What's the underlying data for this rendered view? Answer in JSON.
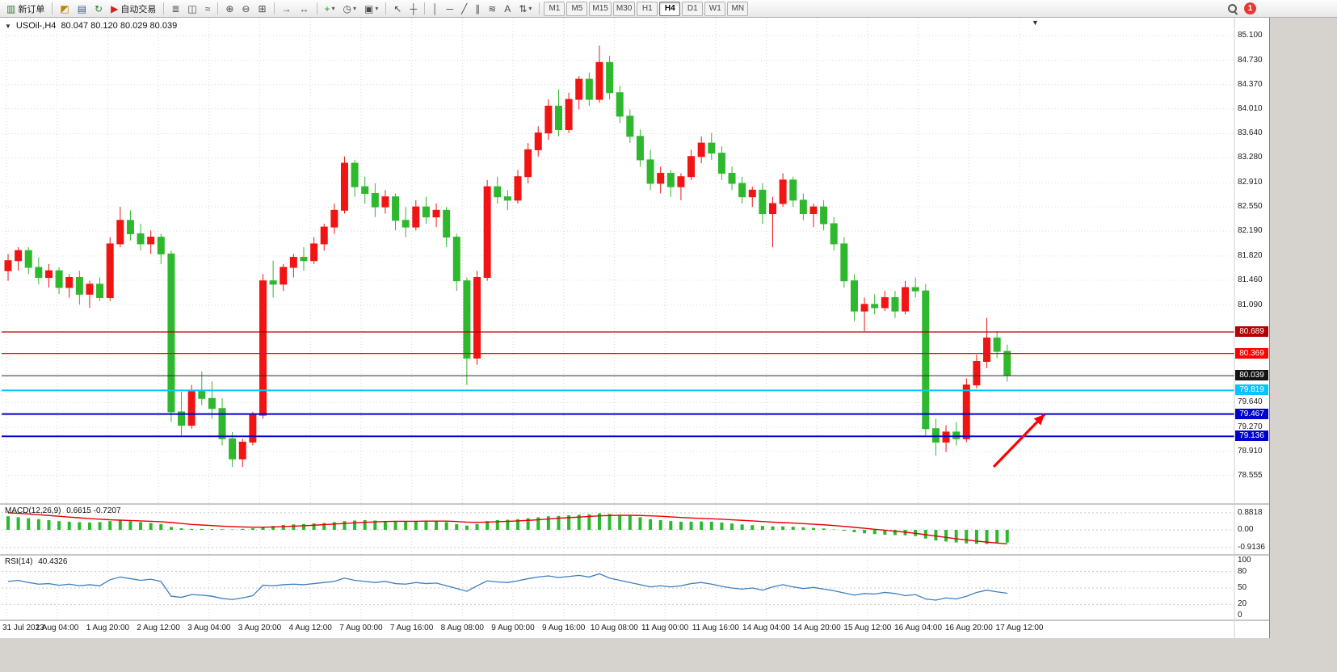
{
  "app": {
    "notification_count": "1"
  },
  "icons": {
    "chart_menu": "▼",
    "shift_marker": "▼",
    "dropdown_ca": "▾"
  },
  "legend": {
    "symbol_period": "USOil-,H4",
    "ohlc_text": "80.047 80.120 80.029 80.039"
  },
  "toolbar": {
    "groups": [
      [
        {
          "name": "new-order-button",
          "glyph": "▥",
          "glyph_color": "#2e7d32",
          "label": "新订单"
        }
      ],
      [
        {
          "name": "new-chart-button",
          "glyph": "◩",
          "glyph_color": "#b8860b"
        },
        {
          "name": "profiles-button",
          "glyph": "▤",
          "glyph_color": "#37598c"
        },
        {
          "name": "refresh-button",
          "glyph": "↻",
          "glyph_color": "#2e7d32"
        },
        {
          "name": "autotrading-button",
          "glyph": "▶",
          "glyph_color": "#cc2222",
          "label": "自动交易"
        }
      ],
      [
        {
          "name": "bar-chart-button",
          "glyph": "≣"
        },
        {
          "name": "candlestick-chart-button",
          "glyph": "◫"
        },
        {
          "name": "line-chart-button",
          "glyph": "≈"
        }
      ],
      [
        {
          "name": "zoom-in-button",
          "glyph": "⊕"
        },
        {
          "name": "zoom-out-button",
          "glyph": "⊖"
        },
        {
          "name": "tile-windows-button",
          "glyph": "⊞"
        }
      ],
      [
        {
          "name": "auto-scroll-button",
          "glyph": "→"
        },
        {
          "name": "chart-shift-button",
          "glyph": "↔"
        }
      ],
      [
        {
          "name": "indicators-button",
          "glyph": "+",
          "glyph_color": "#1da11d",
          "dropdown": true
        },
        {
          "name": "periods-button",
          "glyph": "◷",
          "dropdown": true
        },
        {
          "name": "templates-button",
          "glyph": "▣",
          "dropdown": true
        }
      ],
      [
        {
          "name": "cursor-button",
          "glyph": "↖"
        },
        {
          "name": "crosshair-button",
          "glyph": "┼"
        }
      ],
      [
        {
          "name": "vertical-line-button",
          "glyph": "│"
        },
        {
          "name": "horizontal-line-button",
          "glyph": "─"
        },
        {
          "name": "trendline-button",
          "glyph": "╱"
        },
        {
          "name": "channel-button",
          "glyph": "∥"
        },
        {
          "name": "fibonacci-button",
          "glyph": "≋"
        },
        {
          "name": "text-button",
          "glyph": "A"
        },
        {
          "name": "arrows-button",
          "glyph": "⇅",
          "dropdown": true
        }
      ]
    ],
    "timeframes": {
      "options": [
        "M1",
        "M5",
        "M15",
        "M30",
        "H1",
        "H4",
        "D1",
        "W1",
        "MN"
      ],
      "active": "H4"
    }
  },
  "chart_data": {
    "type": "candlestick",
    "symbol": "USOil-",
    "timeframe": "H4",
    "last_price": 80.039,
    "up_color": "#f01414",
    "down_color": "#2eb82e",
    "ylim": [
      78.4,
      85.36
    ],
    "y_tick_labels": [
      "85.100",
      "84.730",
      "84.370",
      "84.010",
      "83.640",
      "83.280",
      "82.910",
      "82.550",
      "82.190",
      "81.820",
      "81.460",
      "81.090",
      "79.640",
      "79.270",
      "78.910",
      "78.555"
    ],
    "x_tick_labels": [
      "31 Jul 2023",
      "1 Aug 04:00",
      "1 Aug 20:00",
      "2 Aug 12:00",
      "3 Aug 04:00",
      "3 Aug 20:00",
      "4 Aug 12:00",
      "7 Aug 00:00",
      "7 Aug 16:00",
      "8 Aug 08:00",
      "9 Aug 00:00",
      "9 Aug 16:00",
      "10 Aug 08:00",
      "11 Aug 00:00",
      "11 Aug 16:00",
      "14 Aug 04:00",
      "14 Aug 20:00",
      "15 Aug 12:00",
      "16 Aug 04:00",
      "16 Aug 20:00",
      "17 Aug 12:00"
    ],
    "price_levels": [
      {
        "price": "80.689",
        "color": "#b30000",
        "width": 1.2
      },
      {
        "price": "80.369",
        "color": "#ff0000",
        "width": 1.2
      },
      {
        "price": "80.039",
        "color": "#2b2b2b",
        "width": 1,
        "badge_bg": "#141414"
      },
      {
        "price": "79.819",
        "color": "#00c6ff",
        "width": 2
      },
      {
        "price": "79.467",
        "color": "#0000cd",
        "width": 2
      },
      {
        "price": "79.136",
        "color": "#0000cd",
        "width": 2
      }
    ],
    "ohlc": [
      [
        81.6,
        81.85,
        81.45,
        81.75
      ],
      [
        81.75,
        81.95,
        81.6,
        81.9
      ],
      [
        81.9,
        81.95,
        81.55,
        81.65
      ],
      [
        81.65,
        81.8,
        81.4,
        81.5
      ],
      [
        81.5,
        81.7,
        81.35,
        81.6
      ],
      [
        81.6,
        81.65,
        81.25,
        81.35
      ],
      [
        81.35,
        81.55,
        81.2,
        81.5
      ],
      [
        81.5,
        81.6,
        81.1,
        81.25
      ],
      [
        81.25,
        81.45,
        81.05,
        81.4
      ],
      [
        81.4,
        81.5,
        81.15,
        81.2
      ],
      [
        81.2,
        82.1,
        81.15,
        82.0
      ],
      [
        82.0,
        82.55,
        81.95,
        82.35
      ],
      [
        82.35,
        82.5,
        82.05,
        82.15
      ],
      [
        82.15,
        82.3,
        81.9,
        82.0
      ],
      [
        82.0,
        82.2,
        81.85,
        82.1
      ],
      [
        82.1,
        82.15,
        81.7,
        81.85
      ],
      [
        81.85,
        81.9,
        79.35,
        79.5
      ],
      [
        79.5,
        79.8,
        79.15,
        79.3
      ],
      [
        79.3,
        79.9,
        79.25,
        79.8
      ],
      [
        79.8,
        80.1,
        79.6,
        79.7
      ],
      [
        79.7,
        79.95,
        79.4,
        79.55
      ],
      [
        79.55,
        79.7,
        79.0,
        79.1
      ],
      [
        79.1,
        79.2,
        78.68,
        78.8
      ],
      [
        78.8,
        79.1,
        78.68,
        79.05
      ],
      [
        79.05,
        79.5,
        79.0,
        79.45
      ],
      [
        79.45,
        81.55,
        79.4,
        81.45
      ],
      [
        81.45,
        81.75,
        81.2,
        81.4
      ],
      [
        81.4,
        81.7,
        81.3,
        81.65
      ],
      [
        81.65,
        81.85,
        81.5,
        81.8
      ],
      [
        81.8,
        81.95,
        81.6,
        81.75
      ],
      [
        81.75,
        82.1,
        81.7,
        82.0
      ],
      [
        82.0,
        82.3,
        81.9,
        82.25
      ],
      [
        82.25,
        82.6,
        82.15,
        82.5
      ],
      [
        82.5,
        83.3,
        82.45,
        83.2
      ],
      [
        83.2,
        83.25,
        82.7,
        82.85
      ],
      [
        82.85,
        83.0,
        82.6,
        82.75
      ],
      [
        82.75,
        82.9,
        82.4,
        82.55
      ],
      [
        82.55,
        82.8,
        82.45,
        82.7
      ],
      [
        82.7,
        82.75,
        82.2,
        82.35
      ],
      [
        82.35,
        82.55,
        82.1,
        82.25
      ],
      [
        82.25,
        82.65,
        82.2,
        82.55
      ],
      [
        82.55,
        82.7,
        82.3,
        82.4
      ],
      [
        82.4,
        82.6,
        82.25,
        82.5
      ],
      [
        82.5,
        82.55,
        81.95,
        82.1
      ],
      [
        82.1,
        82.15,
        81.3,
        81.45
      ],
      [
        81.45,
        81.5,
        79.9,
        80.3
      ],
      [
        80.3,
        81.6,
        80.2,
        81.5
      ],
      [
        81.5,
        82.95,
        81.45,
        82.85
      ],
      [
        82.85,
        83.0,
        82.6,
        82.7
      ],
      [
        82.7,
        82.8,
        82.5,
        82.65
      ],
      [
        82.65,
        83.1,
        82.6,
        83.0
      ],
      [
        83.0,
        83.5,
        82.9,
        83.4
      ],
      [
        83.4,
        83.75,
        83.3,
        83.65
      ],
      [
        83.65,
        84.15,
        83.55,
        84.05
      ],
      [
        84.05,
        84.3,
        83.6,
        83.7
      ],
      [
        83.7,
        84.25,
        83.65,
        84.15
      ],
      [
        84.15,
        84.5,
        84.0,
        84.45
      ],
      [
        84.45,
        84.55,
        84.05,
        84.15
      ],
      [
        84.15,
        84.95,
        84.1,
        84.7
      ],
      [
        84.7,
        84.8,
        84.15,
        84.25
      ],
      [
        84.25,
        84.35,
        83.8,
        83.9
      ],
      [
        83.9,
        84.0,
        83.5,
        83.6
      ],
      [
        83.6,
        83.7,
        83.15,
        83.25
      ],
      [
        83.25,
        83.4,
        82.8,
        82.9
      ],
      [
        82.9,
        83.15,
        82.75,
        83.05
      ],
      [
        83.05,
        83.1,
        82.7,
        82.85
      ],
      [
        82.85,
        83.05,
        82.65,
        83.0
      ],
      [
        83.0,
        83.4,
        82.95,
        83.3
      ],
      [
        83.3,
        83.6,
        83.2,
        83.5
      ],
      [
        83.5,
        83.65,
        83.25,
        83.35
      ],
      [
        83.35,
        83.45,
        82.95,
        83.05
      ],
      [
        83.05,
        83.15,
        82.8,
        82.9
      ],
      [
        82.9,
        83.0,
        82.6,
        82.7
      ],
      [
        82.7,
        82.85,
        82.55,
        82.8
      ],
      [
        82.8,
        82.9,
        82.3,
        82.45
      ],
      [
        82.45,
        82.7,
        81.95,
        82.6
      ],
      [
        82.6,
        83.05,
        82.55,
        82.95
      ],
      [
        82.95,
        83.0,
        82.55,
        82.65
      ],
      [
        82.65,
        82.75,
        82.35,
        82.45
      ],
      [
        82.45,
        82.6,
        82.25,
        82.55
      ],
      [
        82.55,
        82.65,
        82.2,
        82.3
      ],
      [
        82.3,
        82.4,
        81.9,
        82.0
      ],
      [
        82.0,
        82.1,
        81.35,
        81.45
      ],
      [
        81.45,
        81.55,
        80.85,
        81.0
      ],
      [
        81.0,
        81.2,
        80.7,
        81.1
      ],
      [
        81.1,
        81.25,
        80.95,
        81.05
      ],
      [
        81.05,
        81.3,
        81.0,
        81.2
      ],
      [
        81.2,
        81.3,
        80.9,
        81.0
      ],
      [
        81.0,
        81.45,
        80.95,
        81.35
      ],
      [
        81.35,
        81.5,
        81.2,
        81.3
      ],
      [
        81.3,
        81.4,
        79.15,
        79.25
      ],
      [
        79.25,
        79.4,
        78.85,
        79.05
      ],
      [
        79.05,
        79.3,
        78.9,
        79.2
      ],
      [
        79.2,
        79.35,
        79.0,
        79.1
      ],
      [
        79.1,
        80.0,
        79.05,
        79.9
      ],
      [
        79.9,
        80.35,
        79.85,
        80.25
      ],
      [
        80.25,
        80.9,
        80.15,
        80.6
      ],
      [
        80.6,
        80.7,
        80.3,
        80.4
      ],
      [
        80.4,
        80.5,
        79.95,
        80.04
      ]
    ],
    "macd": {
      "title": "MACD(12,26,9)",
      "current_text": "0.6615 -0.7207",
      "axis_labels": [
        "0.8818",
        "0.00",
        "-0.9136"
      ],
      "histogram_color": "#2eb82e",
      "signal_color": "#e60000",
      "histogram": [
        0.7,
        0.65,
        0.6,
        0.55,
        0.5,
        0.45,
        0.42,
        0.4,
        0.38,
        0.4,
        0.45,
        0.48,
        0.45,
        0.4,
        0.35,
        0.3,
        0.15,
        0.08,
        0.05,
        0.05,
        0.04,
        0.03,
        0.02,
        0.05,
        0.08,
        0.15,
        0.2,
        0.25,
        0.28,
        0.3,
        0.33,
        0.36,
        0.4,
        0.45,
        0.48,
        0.5,
        0.48,
        0.46,
        0.44,
        0.42,
        0.44,
        0.45,
        0.46,
        0.4,
        0.3,
        0.22,
        0.3,
        0.45,
        0.5,
        0.52,
        0.55,
        0.6,
        0.65,
        0.7,
        0.72,
        0.75,
        0.78,
        0.8,
        0.85,
        0.82,
        0.78,
        0.72,
        0.65,
        0.55,
        0.5,
        0.45,
        0.42,
        0.42,
        0.43,
        0.42,
        0.38,
        0.33,
        0.28,
        0.24,
        0.2,
        0.18,
        0.18,
        0.16,
        0.13,
        0.1,
        0.07,
        0.02,
        -0.05,
        -0.12,
        -0.18,
        -0.22,
        -0.25,
        -0.27,
        -0.28,
        -0.32,
        -0.45,
        -0.55,
        -0.6,
        -0.65,
        -0.7,
        -0.72,
        -0.73,
        -0.7,
        -0.66
      ],
      "signal": [
        0.88,
        0.85,
        0.82,
        0.78,
        0.74,
        0.7,
        0.66,
        0.62,
        0.58,
        0.55,
        0.52,
        0.5,
        0.48,
        0.46,
        0.44,
        0.42,
        0.38,
        0.33,
        0.28,
        0.25,
        0.22,
        0.19,
        0.17,
        0.15,
        0.14,
        0.14,
        0.15,
        0.17,
        0.19,
        0.21,
        0.24,
        0.27,
        0.3,
        0.33,
        0.36,
        0.39,
        0.41,
        0.43,
        0.44,
        0.44,
        0.44,
        0.45,
        0.45,
        0.45,
        0.43,
        0.4,
        0.39,
        0.4,
        0.42,
        0.44,
        0.46,
        0.49,
        0.52,
        0.56,
        0.6,
        0.63,
        0.66,
        0.69,
        0.72,
        0.74,
        0.75,
        0.75,
        0.74,
        0.72,
        0.7,
        0.67,
        0.64,
        0.61,
        0.59,
        0.57,
        0.55,
        0.52,
        0.49,
        0.46,
        0.43,
        0.4,
        0.37,
        0.35,
        0.32,
        0.29,
        0.26,
        0.22,
        0.18,
        0.13,
        0.08,
        0.03,
        -0.02,
        -0.07,
        -0.12,
        -0.18,
        -0.25,
        -0.32,
        -0.39,
        -0.46,
        -0.52,
        -0.58,
        -0.63,
        -0.68,
        -0.72
      ]
    },
    "rsi": {
      "title": "RSI(14)",
      "current_text": "40.4326",
      "axis_labels": [
        "100",
        "80",
        "50",
        "20",
        "0"
      ],
      "line_color": "#3e7ec1",
      "values": [
        62,
        64,
        60,
        57,
        58,
        55,
        57,
        54,
        56,
        54,
        65,
        70,
        67,
        64,
        66,
        62,
        35,
        33,
        38,
        37,
        35,
        31,
        29,
        32,
        36,
        55,
        54,
        56,
        57,
        56,
        58,
        60,
        62,
        68,
        64,
        62,
        60,
        62,
        58,
        57,
        60,
        58,
        59,
        54,
        49,
        44,
        54,
        63,
        61,
        60,
        63,
        67,
        70,
        72,
        69,
        71,
        73,
        70,
        76,
        68,
        64,
        60,
        56,
        52,
        54,
        52,
        54,
        58,
        60,
        57,
        53,
        50,
        48,
        50,
        46,
        52,
        56,
        52,
        49,
        51,
        48,
        45,
        41,
        37,
        40,
        39,
        42,
        40,
        36,
        38,
        30,
        28,
        32,
        30,
        35,
        42,
        46,
        43,
        40.43
      ]
    }
  },
  "annotations": {
    "arrow": {
      "color": "#ff0000",
      "from": [
        1230,
        578
      ],
      "to": [
        1293,
        513
      ]
    }
  }
}
